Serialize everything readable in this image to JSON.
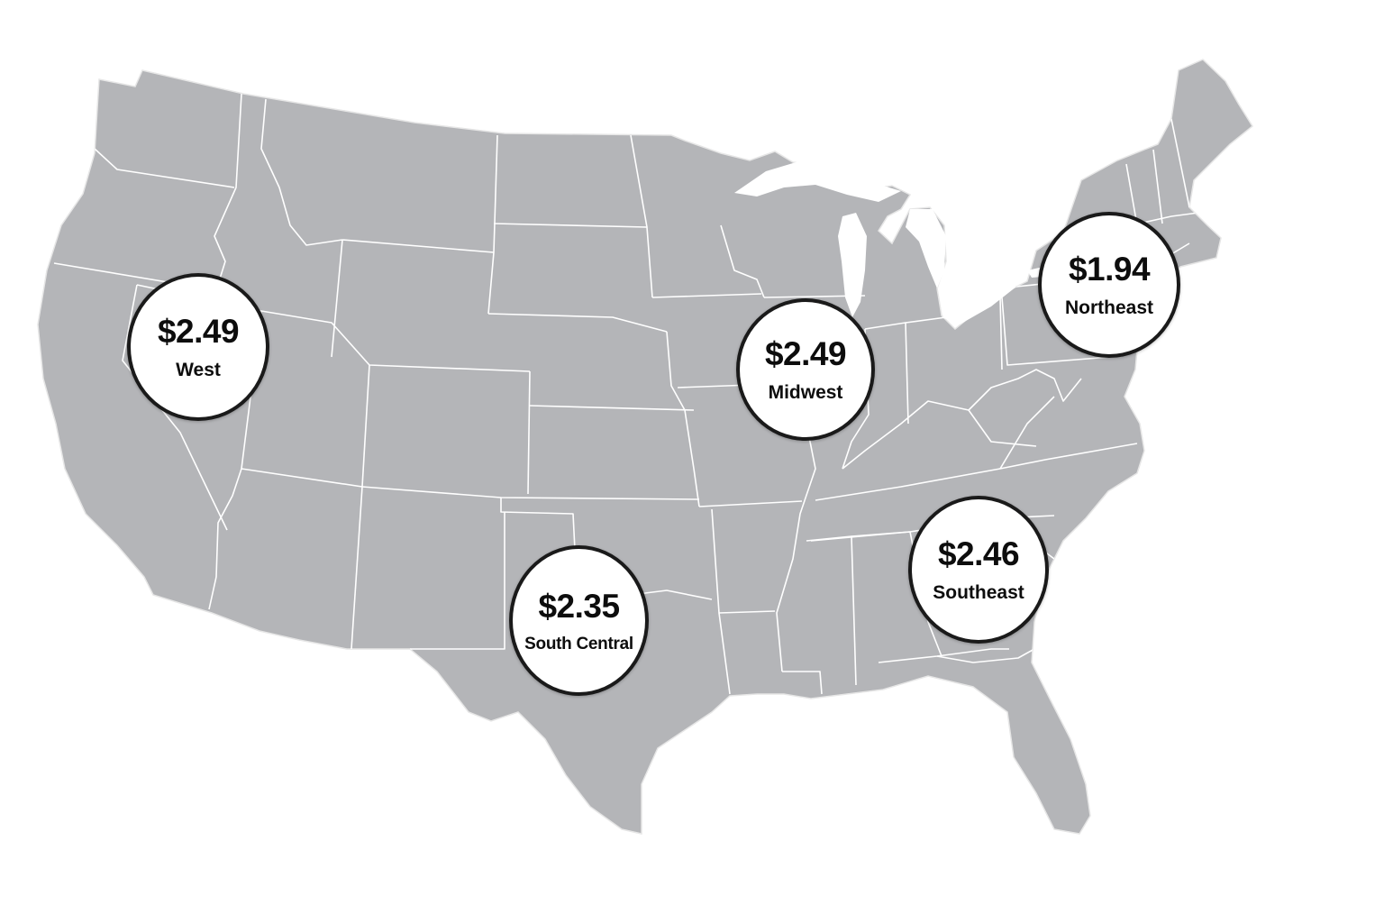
{
  "map": {
    "land_color": "#b4b5b8",
    "border_color": "#ffffff",
    "background_color": "#ffffff",
    "badge_outline_color": "#1a1a1a"
  },
  "regions": [
    {
      "price": "$2.49",
      "name": "West"
    },
    {
      "price": "$2.49",
      "name": "Midwest"
    },
    {
      "price": "$1.94",
      "name": "Northeast"
    },
    {
      "price": "$2.35",
      "name": "South Central"
    },
    {
      "price": "$2.46",
      "name": "Southeast"
    }
  ]
}
